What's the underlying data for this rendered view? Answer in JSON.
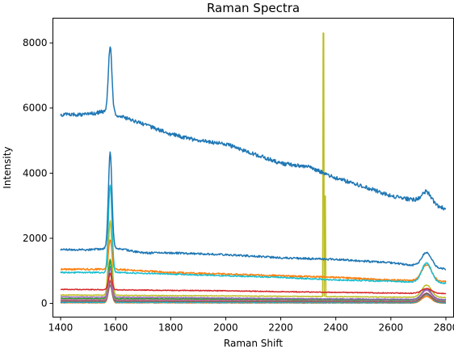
{
  "chart_data": {
    "type": "line",
    "title": "Raman Spectra",
    "xlabel": "Raman Shift",
    "ylabel": "Intensity",
    "xlim": [
      1372,
      2828
    ],
    "ylim": [
      -420,
      8760
    ],
    "xticks": [
      1400,
      1600,
      1800,
      2000,
      2200,
      2400,
      2600,
      2800
    ],
    "yticks": [
      0,
      2000,
      4000,
      6000,
      8000
    ],
    "grid": false,
    "legend": "none",
    "x_range": [
      1400,
      2800
    ],
    "g_peak_position": 1580,
    "two_d_peak_position": 2730,
    "series": [
      {
        "color": "#1f77b4",
        "baseline": [
          [
            1400,
            5800
          ],
          [
            1500,
            5800
          ],
          [
            1560,
            5900
          ],
          [
            1600,
            5800
          ],
          [
            1700,
            5500
          ],
          [
            1800,
            5200
          ],
          [
            1900,
            5000
          ],
          [
            2000,
            4900
          ],
          [
            2100,
            4600
          ],
          [
            2200,
            4300
          ],
          [
            2300,
            4200
          ],
          [
            2400,
            3850
          ],
          [
            2500,
            3600
          ],
          [
            2600,
            3300
          ],
          [
            2700,
            3150
          ],
          [
            2800,
            2900
          ]
        ],
        "g_peak": 2050,
        "two_d_peak": 350,
        "noise": 60
      },
      {
        "color": "#1f77b4",
        "baseline": [
          [
            1400,
            1650
          ],
          [
            1500,
            1650
          ],
          [
            1600,
            1700
          ],
          [
            1700,
            1550
          ],
          [
            1800,
            1550
          ],
          [
            2000,
            1500
          ],
          [
            2200,
            1400
          ],
          [
            2400,
            1350
          ],
          [
            2600,
            1250
          ],
          [
            2800,
            1050
          ]
        ],
        "g_peak": 2950,
        "two_d_peak": 450,
        "noise": 30
      },
      {
        "color": "#17becf",
        "baseline": [
          [
            1400,
            950
          ],
          [
            1600,
            950
          ],
          [
            1800,
            900
          ],
          [
            2000,
            850
          ],
          [
            2200,
            800
          ],
          [
            2400,
            720
          ],
          [
            2600,
            680
          ],
          [
            2800,
            620
          ]
        ],
        "g_peak": 2700,
        "two_d_peak": 600,
        "noise": 20
      },
      {
        "color": "#ff7f0e",
        "baseline": [
          [
            1400,
            1050
          ],
          [
            1600,
            1050
          ],
          [
            1800,
            950
          ],
          [
            2000,
            900
          ],
          [
            2200,
            850
          ],
          [
            2400,
            800
          ],
          [
            2600,
            720
          ],
          [
            2800,
            680
          ]
        ],
        "g_peak": 900,
        "two_d_peak": 500,
        "noise": 25
      },
      {
        "color": "#d62728",
        "baseline": [
          [
            1400,
            430
          ],
          [
            1600,
            420
          ],
          [
            1800,
            400
          ],
          [
            2000,
            390
          ],
          [
            2200,
            360
          ],
          [
            2400,
            340
          ],
          [
            2600,
            320
          ],
          [
            2800,
            300
          ]
        ],
        "g_peak": 500,
        "two_d_peak": 150,
        "noise": 12
      },
      {
        "color": "#bcbd22",
        "baseline": [
          [
            1400,
            260
          ],
          [
            1800,
            240
          ],
          [
            2200,
            220
          ],
          [
            2800,
            180
          ]
        ],
        "g_peak": 2300,
        "two_d_peak": 380,
        "noise": 10,
        "spike": {
          "x": 2355,
          "value": 8300,
          "second": 3300
        }
      },
      {
        "color": "#9467bd",
        "baseline": [
          [
            1400,
            200
          ],
          [
            1800,
            180
          ],
          [
            2200,
            150
          ],
          [
            2800,
            120
          ]
        ],
        "g_peak": 900,
        "two_d_peak": 300,
        "noise": 10
      },
      {
        "color": "#2ca02c",
        "baseline": [
          [
            1400,
            150
          ],
          [
            1800,
            140
          ],
          [
            2200,
            120
          ],
          [
            2800,
            100
          ]
        ],
        "g_peak": 1200,
        "two_d_peak": 350,
        "noise": 10
      },
      {
        "color": "#e377c2",
        "baseline": [
          [
            1400,
            120
          ],
          [
            1800,
            110
          ],
          [
            2200,
            100
          ],
          [
            2800,
            80
          ]
        ],
        "g_peak": 800,
        "two_d_peak": 320,
        "noise": 8
      },
      {
        "color": "#8c564b",
        "baseline": [
          [
            1400,
            90
          ],
          [
            1800,
            80
          ],
          [
            2200,
            70
          ],
          [
            2800,
            60
          ]
        ],
        "g_peak": 600,
        "two_d_peak": 250,
        "noise": 8
      },
      {
        "color": "#7f7f7f",
        "baseline": [
          [
            1400,
            60
          ],
          [
            1800,
            55
          ],
          [
            2200,
            50
          ],
          [
            2800,
            40
          ]
        ],
        "g_peak": 500,
        "two_d_peak": 220,
        "noise": 8
      },
      {
        "color": "#17becf",
        "baseline": [
          [
            1400,
            40
          ],
          [
            1800,
            35
          ],
          [
            2200,
            30
          ],
          [
            2800,
            25
          ]
        ],
        "g_peak": 1100,
        "two_d_peak": 260,
        "noise": 8
      },
      {
        "color": "#1f77b4",
        "baseline": [
          [
            1400,
            30
          ],
          [
            1800,
            28
          ],
          [
            2200,
            25
          ],
          [
            2800,
            20
          ]
        ],
        "g_peak": 1300,
        "two_d_peak": 280,
        "noise": 8
      },
      {
        "color": "#ff7f0e",
        "baseline": [
          [
            1400,
            20
          ],
          [
            1800,
            18
          ],
          [
            2200,
            15
          ],
          [
            2800,
            12
          ]
        ],
        "g_peak": 700,
        "two_d_peak": 200,
        "noise": 6
      }
    ]
  }
}
